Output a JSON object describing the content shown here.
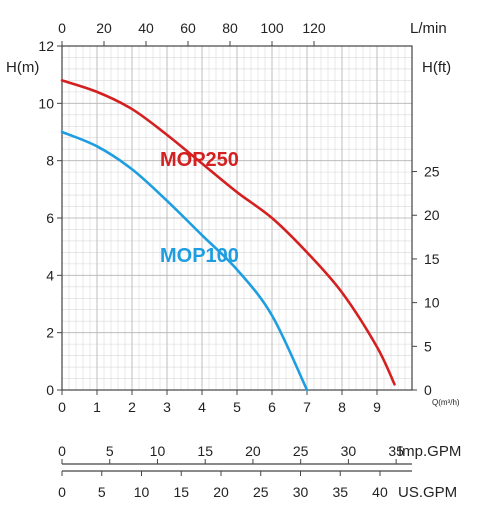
{
  "chart_data": {
    "type": "line",
    "title": "",
    "x": {
      "label": "Q(m³/h)",
      "ticks": [
        0,
        1,
        2,
        3,
        4,
        5,
        6,
        7,
        8,
        9
      ],
      "range": [
        0,
        10
      ],
      "minor_step": 0.2
    },
    "x_top": {
      "label": "L/min",
      "ticks": [
        0,
        20,
        40,
        60,
        80,
        100,
        120
      ]
    },
    "y_left": {
      "label": "H(m)",
      "ticks": [
        0,
        2,
        4,
        6,
        8,
        10,
        12
      ],
      "range": [
        0,
        12
      ],
      "minor_step": 0.4
    },
    "y_right": {
      "label": "H(ft)",
      "ticks": [
        0,
        5,
        10,
        15,
        20,
        25
      ]
    },
    "scale_imp": {
      "label": "Imp.GPM",
      "ticks": [
        0,
        5,
        10,
        15,
        20,
        25,
        30,
        35
      ]
    },
    "scale_us": {
      "label": "US.GPM",
      "ticks": [
        0,
        5,
        10,
        15,
        20,
        25,
        30,
        35,
        40
      ]
    },
    "grid": true,
    "series": [
      {
        "name": "MOP250",
        "color": "#d42020",
        "points": [
          [
            0,
            10.8
          ],
          [
            1,
            10.4
          ],
          [
            2,
            9.8
          ],
          [
            3,
            8.9
          ],
          [
            4,
            7.9
          ],
          [
            5,
            6.9
          ],
          [
            6,
            6.0
          ],
          [
            7,
            4.8
          ],
          [
            8,
            3.4
          ],
          [
            9,
            1.5
          ],
          [
            9.5,
            0.2
          ]
        ]
      },
      {
        "name": "MOP100",
        "color": "#1e9ee0",
        "points": [
          [
            0,
            9.0
          ],
          [
            1,
            8.5
          ],
          [
            2,
            7.7
          ],
          [
            3,
            6.6
          ],
          [
            4,
            5.4
          ],
          [
            5,
            4.2
          ],
          [
            6,
            2.6
          ],
          [
            7,
            0.0
          ]
        ]
      }
    ]
  }
}
